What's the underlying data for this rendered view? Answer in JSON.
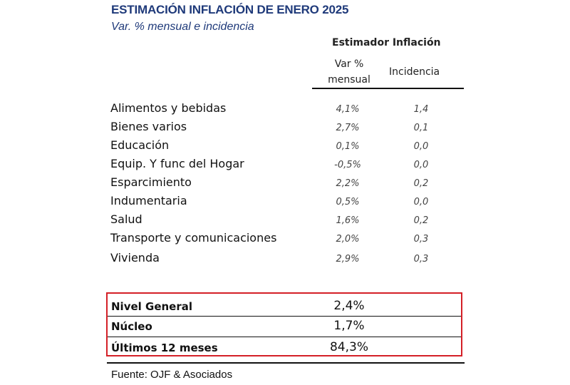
{
  "title": "ESTIMACIÓN INFLACIÓN DE ENERO 2025",
  "subtitle": "Var. % mensual e incidencia",
  "table": {
    "group_header": "Estimador Inflación",
    "col_var": "Var % mensual",
    "col_inc": "Incidencia",
    "rows": [
      {
        "label": "Alimentos y bebidas",
        "var": "4,1%",
        "inc": "1,4"
      },
      {
        "label": "Bienes varios",
        "var": "2,7%",
        "inc": "0,1"
      },
      {
        "label": "Educación",
        "var": "0,1%",
        "inc": "0,0"
      },
      {
        "label": "Equip. Y func del Hogar",
        "var": "-0,5%",
        "inc": "0,0"
      },
      {
        "label": "Esparcimiento",
        "var": "2,2%",
        "inc": "0,2"
      },
      {
        "label": "Indumentaria",
        "var": "0,5%",
        "inc": "0,0"
      },
      {
        "label": "Salud",
        "var": "1,6%",
        "inc": "0,2"
      },
      {
        "label": "Transporte y comunicaciones",
        "var": "2,0%",
        "inc": "0,3"
      },
      {
        "label": "Vivienda",
        "var": "2,9%",
        "inc": "0,3"
      }
    ]
  },
  "summary": [
    {
      "label": "Nivel General",
      "value": "2,4%"
    },
    {
      "label": "Núcleo",
      "value": "1,7%"
    },
    {
      "label": "Últimos 12 meses",
      "value": "84,3%"
    }
  ],
  "source": "Fuente: OJF & Asociados",
  "colors": {
    "title": "#1f3a7a",
    "highlight_border": "#d42027"
  }
}
